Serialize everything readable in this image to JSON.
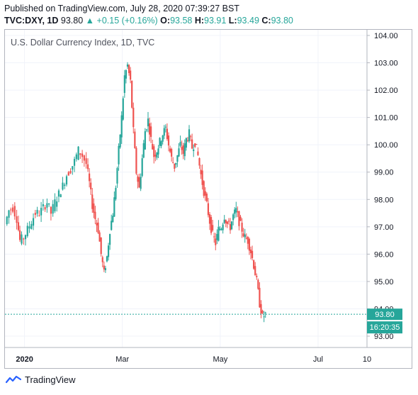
{
  "header": {
    "published": "Published on TradingView.com, July 28, 2020 07:39:27 BST",
    "symbol": "TVC:DXY, 1D",
    "last": "93.80",
    "arrow": "▲",
    "change": "+0.15 (+0.16%)",
    "o_label": "O:",
    "o_value": "93.58",
    "h_label": "H:",
    "h_value": "93.91",
    "l_label": "L:",
    "l_value": "93.49",
    "c_label": "C:",
    "c_value": "93.80"
  },
  "chart_title": "U.S. Dollar Currency Index, 1D, TVC",
  "footer": {
    "brand": "TradingView"
  },
  "colors": {
    "up": "#26a69a",
    "down": "#ef5350",
    "price_line": "#26a69a",
    "grid": "#f0f3fa",
    "axis_text": "#131722"
  },
  "chart_data": {
    "type": "candlestick",
    "title": "U.S. Dollar Currency Index, 1D, TVC",
    "ylim": [
      93.0,
      104.0
    ],
    "yticks": [
      "104.00",
      "103.00",
      "102.00",
      "101.00",
      "100.00",
      "99.00",
      "98.00",
      "97.00",
      "96.00",
      "95.00",
      "94.00",
      "93.00"
    ],
    "xticks": [
      {
        "label": "2020",
        "month": 1.0
      },
      {
        "label": "Mar",
        "month": 3.0
      },
      {
        "label": "May",
        "month": 5.0
      },
      {
        "label": "Jul",
        "month": 7.0
      },
      {
        "label": "10",
        "month": 8.0
      }
    ],
    "x_start_month": 0.6,
    "x_end_month": 8.0,
    "last_price_label": "93.80",
    "time_label": "16:20:35",
    "close_path": [
      [
        0.62,
        97.1
      ],
      [
        0.7,
        97.6
      ],
      [
        0.78,
        97.7
      ],
      [
        0.86,
        97.3
      ],
      [
        0.92,
        96.5
      ],
      [
        1.0,
        96.6
      ],
      [
        1.08,
        96.9
      ],
      [
        1.16,
        97.2
      ],
      [
        1.24,
        97.5
      ],
      [
        1.32,
        97.5
      ],
      [
        1.4,
        97.7
      ],
      [
        1.48,
        97.9
      ],
      [
        1.56,
        97.5
      ],
      [
        1.64,
        97.9
      ],
      [
        1.72,
        98.2
      ],
      [
        1.8,
        98.5
      ],
      [
        1.88,
        98.9
      ],
      [
        1.96,
        99.1
      ],
      [
        2.04,
        99.4
      ],
      [
        2.12,
        99.8
      ],
      [
        2.2,
        99.6
      ],
      [
        2.28,
        99.3
      ],
      [
        2.34,
        98.6
      ],
      [
        2.4,
        97.8
      ],
      [
        2.46,
        97.3
      ],
      [
        2.52,
        96.9
      ],
      [
        2.58,
        96.0
      ],
      [
        2.64,
        95.3
      ],
      [
        2.7,
        95.9
      ],
      [
        2.76,
        96.9
      ],
      [
        2.82,
        97.5
      ],
      [
        2.88,
        98.5
      ],
      [
        2.94,
        99.8
      ],
      [
        3.0,
        101.0
      ],
      [
        3.06,
        102.5
      ],
      [
        3.12,
        102.9
      ],
      [
        3.18,
        102.3
      ],
      [
        3.24,
        100.5
      ],
      [
        3.3,
        99.0
      ],
      [
        3.36,
        98.4
      ],
      [
        3.42,
        99.5
      ],
      [
        3.48,
        100.5
      ],
      [
        3.54,
        100.9
      ],
      [
        3.6,
        100.2
      ],
      [
        3.66,
        99.6
      ],
      [
        3.72,
        99.8
      ],
      [
        3.78,
        100.1
      ],
      [
        3.84,
        100.4
      ],
      [
        3.9,
        100.6
      ],
      [
        3.96,
        100.0
      ],
      [
        4.02,
        99.5
      ],
      [
        4.08,
        99.2
      ],
      [
        4.14,
        99.6
      ],
      [
        4.2,
        100.0
      ],
      [
        4.26,
        99.7
      ],
      [
        4.32,
        100.2
      ],
      [
        4.38,
        100.4
      ],
      [
        4.44,
        99.9
      ],
      [
        4.5,
        100.1
      ],
      [
        4.56,
        99.6
      ],
      [
        4.62,
        98.9
      ],
      [
        4.68,
        98.3
      ],
      [
        4.74,
        97.8
      ],
      [
        4.8,
        97.2
      ],
      [
        4.86,
        96.7
      ],
      [
        4.92,
        96.4
      ],
      [
        4.98,
        96.9
      ],
      [
        5.04,
        97.0
      ],
      [
        5.1,
        97.4
      ],
      [
        5.16,
        97.1
      ],
      [
        5.22,
        97.0
      ],
      [
        5.28,
        97.4
      ],
      [
        5.34,
        97.6
      ],
      [
        5.4,
        97.2
      ],
      [
        5.46,
        96.9
      ],
      [
        5.52,
        96.6
      ],
      [
        5.58,
        96.5
      ],
      [
        5.64,
        96.1
      ],
      [
        5.7,
        95.6
      ],
      [
        5.76,
        95.0
      ],
      [
        5.82,
        94.2
      ],
      [
        5.88,
        93.7
      ],
      [
        5.94,
        93.8
      ]
    ]
  }
}
